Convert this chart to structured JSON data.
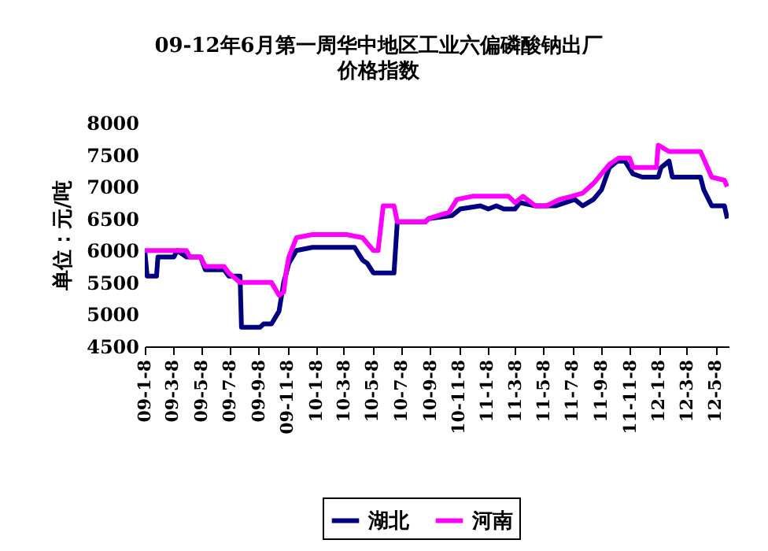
{
  "chart_data": {
    "type": "line",
    "title": "09-12年6月第一周华中地区工业六偏磷酸钠出厂价格指数",
    "ylabel": "单位：元/吨",
    "xlim": [
      "2009-01-08",
      "2012-06-05"
    ],
    "xticks": [
      {
        "value": "2009-01-08",
        "label": "09-1-8"
      },
      {
        "value": "2009-03-08",
        "label": "09-3-8"
      },
      {
        "value": "2009-05-08",
        "label": "09-5-8"
      },
      {
        "value": "2009-07-08",
        "label": "09-7-8"
      },
      {
        "value": "2009-09-08",
        "label": "09-9-8"
      },
      {
        "value": "2009-11-08",
        "label": "09-11-8"
      },
      {
        "value": "2010-01-08",
        "label": "10-1-8"
      },
      {
        "value": "2010-03-08",
        "label": "10-3-8"
      },
      {
        "value": "2010-05-08",
        "label": "10-5-8"
      },
      {
        "value": "2010-07-08",
        "label": "10-7-8"
      },
      {
        "value": "2010-09-08",
        "label": "10-9-8"
      },
      {
        "value": "2010-11-08",
        "label": "10-11-8"
      },
      {
        "value": "2011-01-08",
        "label": "11-1-8"
      },
      {
        "value": "2011-03-08",
        "label": "11-3-8"
      },
      {
        "value": "2011-05-08",
        "label": "11-5-8"
      },
      {
        "value": "2011-07-08",
        "label": "11-7-8"
      },
      {
        "value": "2011-09-08",
        "label": "11-9-8"
      },
      {
        "value": "2011-11-08",
        "label": "11-11-8"
      },
      {
        "value": "2012-01-08",
        "label": "12-1-8"
      },
      {
        "value": "2012-03-08",
        "label": "12-3-8"
      },
      {
        "value": "2012-05-08",
        "label": "12-5-8"
      }
    ],
    "ylim": [
      4500,
      8000
    ],
    "yticks": [
      4500,
      5000,
      5500,
      6000,
      6500,
      7000,
      7500,
      8000
    ],
    "grid": false,
    "legend": "bottom",
    "marker": "none",
    "line_style": "solid",
    "series": [
      {
        "name": "湖北",
        "color": "#000080",
        "x": [
          "2009-01-08",
          "2009-01-13",
          "2009-02-02",
          "2009-02-05",
          "2009-03-11",
          "2009-03-18",
          "2009-04-07",
          "2009-05-07",
          "2009-05-17",
          "2009-06-26",
          "2009-07-06",
          "2009-07-30",
          "2009-08-02",
          "2009-09-11",
          "2009-09-18",
          "2009-10-05",
          "2009-10-21",
          "2009-10-31",
          "2009-11-11",
          "2009-11-27",
          "2009-12-31",
          "2010-03-31",
          "2010-04-17",
          "2010-04-27",
          "2010-05-10",
          "2010-06-23",
          "2010-06-30",
          "2010-08-29",
          "2010-09-05",
          "2010-10-25",
          "2010-11-11",
          "2010-12-24",
          "2011-01-10",
          "2011-01-27",
          "2011-02-12",
          "2011-03-08",
          "2011-03-18",
          "2011-04-20",
          "2011-06-03",
          "2011-07-13",
          "2011-07-30",
          "2011-08-22",
          "2011-09-08",
          "2011-09-25",
          "2011-10-12",
          "2011-10-28",
          "2011-11-14",
          "2011-12-04",
          "2012-01-07",
          "2012-01-13",
          "2012-01-30",
          "2012-02-06",
          "2012-04-06",
          "2012-04-13",
          "2012-04-30",
          "2012-05-27",
          "2012-06-02"
        ],
        "values": [
          6000,
          5600,
          5600,
          5900,
          5900,
          6000,
          5900,
          5900,
          5700,
          5700,
          5600,
          5600,
          4800,
          4800,
          4850,
          4850,
          5050,
          5500,
          5800,
          6000,
          6050,
          6050,
          5850,
          5800,
          5650,
          5650,
          6450,
          6450,
          6500,
          6550,
          6650,
          6700,
          6650,
          6700,
          6650,
          6650,
          6750,
          6700,
          6700,
          6800,
          6700,
          6800,
          6950,
          7300,
          7400,
          7400,
          7200,
          7150,
          7150,
          7300,
          7400,
          7150,
          7150,
          6950,
          6700,
          6700,
          6500
        ]
      },
      {
        "name": "河南",
        "color": "#ff00ff",
        "x": [
          "2009-01-08",
          "2009-04-07",
          "2009-04-14",
          "2009-05-07",
          "2009-05-17",
          "2009-06-26",
          "2009-07-06",
          "2009-07-30",
          "2009-10-05",
          "2009-10-21",
          "2009-10-31",
          "2009-11-06",
          "2009-11-11",
          "2009-11-27",
          "2009-12-31",
          "2010-03-14",
          "2010-04-17",
          "2010-05-10",
          "2010-05-20",
          "2010-05-31",
          "2010-06-23",
          "2010-06-30",
          "2010-08-29",
          "2010-09-05",
          "2010-10-18",
          "2010-11-04",
          "2010-12-07",
          "2011-02-22",
          "2011-03-08",
          "2011-03-25",
          "2011-04-20",
          "2011-05-14",
          "2011-06-10",
          "2011-07-07",
          "2011-07-30",
          "2011-08-22",
          "2011-09-08",
          "2011-09-25",
          "2011-10-15",
          "2011-11-07",
          "2011-11-14",
          "2012-01-03",
          "2012-01-07",
          "2012-01-30",
          "2012-04-06",
          "2012-04-30",
          "2012-05-27",
          "2012-06-02"
        ],
        "values": [
          6000,
          6000,
          5900,
          5900,
          5750,
          5750,
          5650,
          5500,
          5500,
          5300,
          5350,
          5700,
          5900,
          6200,
          6250,
          6250,
          6200,
          6000,
          6000,
          6700,
          6700,
          6450,
          6450,
          6500,
          6600,
          6800,
          6850,
          6850,
          6750,
          6850,
          6700,
          6700,
          6800,
          6850,
          6900,
          7050,
          7200,
          7350,
          7450,
          7450,
          7300,
          7300,
          7650,
          7550,
          7550,
          7150,
          7100,
          7000
        ]
      }
    ]
  }
}
